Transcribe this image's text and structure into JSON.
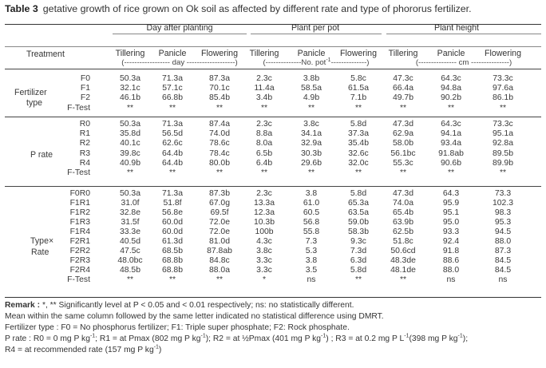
{
  "caption": {
    "label": "Table 3",
    "text": "getative growth of rice grown on Ok soil as affected by different rate and type of phororus fertilizer."
  },
  "header": {
    "treatment": "Treatment",
    "groups": [
      "Day after planting",
      "Plant per pot",
      "Plant height"
    ],
    "columns": [
      "Tillering",
      "Panicle",
      "Flowering",
      "Tillering",
      "Panicle",
      "Flowering",
      "Tillering",
      "Panicle",
      "Flowering"
    ],
    "units": [
      "(------------------ day -------------------)",
      "(--------------No. pot",
      "-1",
      "--------------)",
      "(--------------- cm ---------------)"
    ]
  },
  "sections": [
    {
      "label_lines": [
        "Fertilizer",
        "type"
      ],
      "rows": [
        {
          "code": "F0",
          "values": [
            "50.3a",
            "71.3a",
            "87.3a",
            "2.3c",
            "3.8b",
            "5.8c",
            "47.3c",
            "64.3c",
            "73.3c"
          ]
        },
        {
          "code": "F1",
          "values": [
            "32.1c",
            "57.1c",
            "70.1c",
            "11.4a",
            "58.5a",
            "61.5a",
            "66.4a",
            "94.8a",
            "97.6a"
          ]
        },
        {
          "code": "F2",
          "values": [
            "46.1b",
            "66.8b",
            "85.4b",
            "3.4b",
            "4.9b",
            "7.1b",
            "49.7b",
            "90.2b",
            "86.1b"
          ]
        },
        {
          "code": "F-Test",
          "values": [
            "**",
            "**",
            "**",
            "**",
            "**",
            "**",
            "**",
            "**",
            "**"
          ]
        }
      ]
    },
    {
      "label_lines": [
        "P rate"
      ],
      "rows": [
        {
          "code": "R0",
          "values": [
            "50.3a",
            "71.3a",
            "87.4a",
            "2.3c",
            "3.8c",
            "5.8d",
            "47.3d",
            "64.3c",
            "73.3c"
          ]
        },
        {
          "code": "R1",
          "values": [
            "35.8d",
            "56.5d",
            "74.0d",
            "8.8a",
            "34.1a",
            "37.3a",
            "62.9a",
            "94.1a",
            "95.1a"
          ]
        },
        {
          "code": "R2",
          "values": [
            "40.1c",
            "62.6c",
            "78.6c",
            "8.0a",
            "32.9a",
            "35.4b",
            "58.0b",
            "93.4a",
            "92.8a"
          ]
        },
        {
          "code": "R3",
          "values": [
            "39.8c",
            "64.4b",
            "78.4c",
            "6.5b",
            "30.3b",
            "32.6c",
            "56.1bc",
            "91.8ab",
            "89.5b"
          ]
        },
        {
          "code": "R4",
          "values": [
            "40.9b",
            "64.4b",
            "80.0b",
            "6.4b",
            "29.6b",
            "32.0c",
            "55.3c",
            "90.6b",
            "89.9b"
          ]
        },
        {
          "code": "F-Test",
          "values": [
            "**",
            "**",
            "**",
            "**",
            "**",
            "**",
            "**",
            "**",
            "**"
          ]
        }
      ]
    },
    {
      "label_lines": [
        "Type×",
        "Rate"
      ],
      "rows": [
        {
          "code": "F0R0",
          "values": [
            "50.3a",
            "71.3a",
            "87.3b",
            "2.3c",
            "3.8",
            "5.8d",
            "47.3d",
            "64.3",
            "73.3"
          ]
        },
        {
          "code": "F1R1",
          "values": [
            "31.0f",
            "51.8f",
            "67.0g",
            "13.3a",
            "61.0",
            "65.3a",
            "74.0a",
            "95.9",
            "102.3"
          ]
        },
        {
          "code": "F1R2",
          "values": [
            "32.8e",
            "56.8e",
            "69.5f",
            "12.3a",
            "60.5",
            "63.5a",
            "65.4b",
            "95.1",
            "98.3"
          ]
        },
        {
          "code": "F1R3",
          "values": [
            "31.5f",
            "60.0d",
            "72.0e",
            "10.3b",
            "56.8",
            "59.0b",
            "63.9b",
            "95.0",
            "95.3"
          ]
        },
        {
          "code": "F1R4",
          "values": [
            "33.3e",
            "60.0d",
            "72.0e",
            "100b",
            "55.8",
            "58.3b",
            "62.5b",
            "93.3",
            "94.5"
          ]
        },
        {
          "code": "F2R1",
          "values": [
            "40.5d",
            "61.3d",
            "81.0d",
            "4.3c",
            "7.3",
            "9.3c",
            "51.8c",
            "92.4",
            "88.0"
          ]
        },
        {
          "code": "F2R2",
          "values": [
            "47.5c",
            "68.5b",
            "87.8ab",
            "3.8c",
            "5.3",
            "7.3d",
            "50.6cd",
            "91.8",
            "87.3"
          ]
        },
        {
          "code": "F2R3",
          "values": [
            "48.0bc",
            "68.8b",
            "84.8c",
            "3.3c",
            "3.8",
            "6.3d",
            "48.3de",
            "88.6",
            "84.5"
          ]
        },
        {
          "code": "F2R4",
          "values": [
            "48.5b",
            "68.8b",
            "88.0a",
            "3.3c",
            "3.5",
            "5.8d",
            "48.1de",
            "88.0",
            "84.5"
          ]
        },
        {
          "code": "F-Test",
          "values": [
            "**",
            "**",
            "**",
            "*",
            "ns",
            "**",
            "**",
            "ns",
            "ns"
          ]
        }
      ]
    }
  ],
  "remarks": {
    "l1_bold": "Remark :",
    "l1": " *, ** Significantly level at P < 0.05 and < 0.01 respectively; ns: no statistically different.",
    "l2": "Mean within the same column followed by the same letter indicated no statistical difference using DMRT.",
    "l3": "Fertilizer type : F0 = No phosphorus fertilizer; F1: Triple super phosphate; F2: Rock phosphate.",
    "l4a": "P rate : R0 = 0 mg P kg",
    "l4b": "; R1 = at Pmax (802 mg P kg",
    "l4c": "); R2 = at ½Pmax (401 mg P kg",
    "l4d": ") ; R3 = at 0.2 mg P L",
    "l4e": "(398 mg P kg",
    "l4f": ");",
    "l5a": "R4 = at recommended rate (157 mg P kg",
    "l5b": ")",
    "sup_neg1": "-1"
  }
}
